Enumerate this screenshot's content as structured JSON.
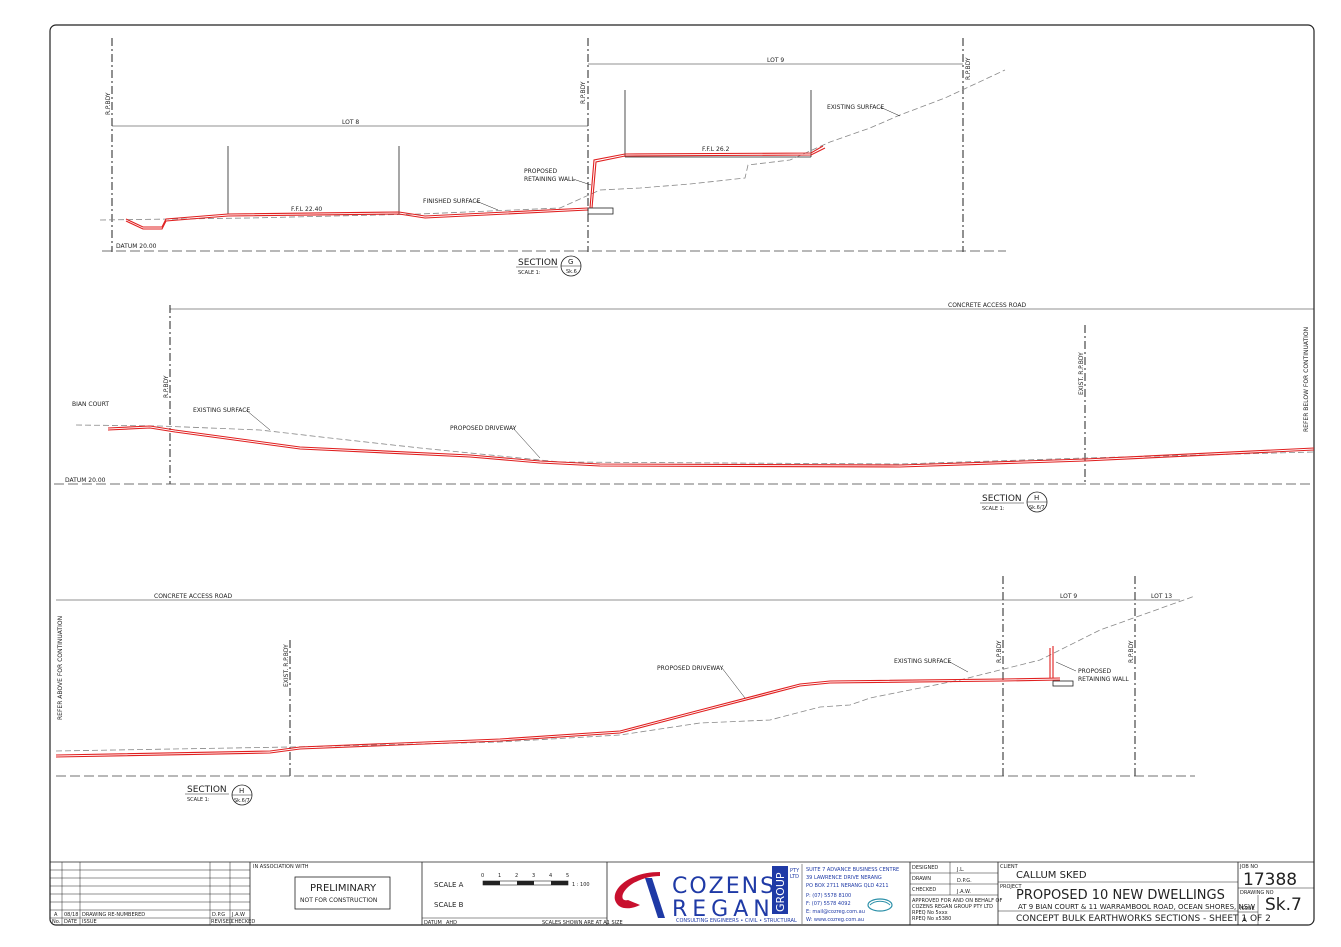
{
  "section_g": {
    "rp_bdy": "R.P.BDY",
    "lot8": "LOT 8",
    "lot9": "LOT 9",
    "ffl_lot8": "F.F.L 22.40",
    "ffl_lot9": "F.F.L 26.2",
    "existing_surface": "EXISTING SURFACE",
    "proposed_retaining_wall_1": "PROPOSED",
    "proposed_retaining_wall_2": "RETAINING WALL",
    "finished_surface": "FINISHED SURFACE",
    "datum": "DATUM 20.00",
    "title": "SECTION",
    "scale": "SCALE 1:",
    "bubble_letter": "G",
    "bubble_ref": "Sk.6"
  },
  "section_h1": {
    "concrete_access_road": "CONCRETE ACCESS ROAD",
    "bian_court": "BIAN COURT",
    "rp_bdy": "R.P.BDY",
    "existing_surface": "EXISTING SURFACE",
    "proposed_driveway": "PROPOSED DRIVEWAY",
    "exist_rp_bdy": "EXIST. R.P.BDY",
    "refer_below": "REFER BELOW FOR CONTINUATION",
    "datum": "DATUM 20.00",
    "title": "SECTION",
    "scale": "SCALE 1:",
    "bubble_letter": "H",
    "bubble_ref": "Sk.6/7"
  },
  "section_h2": {
    "concrete_access_road": "CONCRETE ACCESS ROAD",
    "lot9": "LOT 9",
    "lot13": "LOT 13",
    "refer_above": "REFER ABOVE FOR CONTINUATION",
    "exist_rp_bdy": "EXIST. R.P.BDY",
    "proposed_driveway": "PROPOSED DRIVEWAY",
    "existing_surface": "EXISTING SURFACE",
    "rp_bdy_a": "R.P.BDY",
    "rp_bdy_b": "R.P.BDY",
    "proposed_retaining_wall_1": "PROPOSED",
    "proposed_retaining_wall_2": "RETAINING WALL",
    "title": "SECTION",
    "scale": "SCALE 1:",
    "bubble_letter": "H",
    "bubble_ref": "Sk.6/7"
  },
  "title_block": {
    "rev_a": "A",
    "rev_date": "08/18",
    "rev_desc": "DRAWING RE-NUMBERED",
    "rev_by": "D.P.G",
    "rev_chk": "J.A.W",
    "hdr_no": "No.",
    "hdr_date": "DATE",
    "hdr_issue": "ISSUE",
    "hdr_revised": "REVISED",
    "hdr_checked": "CHECKED",
    "in_association": "IN ASSOCIATION WITH",
    "preliminary": "PRELIMINARY",
    "not_for_construction": "NOT FOR CONSTRUCTION",
    "scale_a": "SCALE  A",
    "scale_b": "SCALE  B",
    "scale_ratio": "1 : 100",
    "scale_ticks": [
      "0",
      "1",
      "2",
      "3",
      "4",
      "5"
    ],
    "datum_label": "DATUM",
    "datum_value": "AHD",
    "scales_note": "SCALES SHOWN ARE AT A1 SIZE",
    "logo_cozens": "COZENS",
    "logo_regan": "REGAN",
    "logo_group": "GROUP",
    "logo_pty": "PTY",
    "logo_ltd": "LTD",
    "logo_tagline": "CONSULTING ENGINEERS • CIVIL • STRUCTURAL",
    "addr": [
      "SUITE 7 ADVANCE BUSINESS CENTRE",
      "39 LAWRENCE DRIVE  NERANG",
      "PO BOX 2711  NERANG  QLD 4211"
    ],
    "contact": [
      "P:  (07) 5578 8100",
      "F:  (07) 5578 4092",
      "E:  mail@cozreg.com.au",
      "W:  www.cozreg.com.au"
    ],
    "designed_label": "DESIGNED",
    "designed": "J.L.",
    "drawn_label": "DRAWN",
    "drawn": "D.P.G.",
    "checked_label": "CHECKED",
    "checked": "J.A.W.",
    "approved": [
      "APPROVED FOR AND ON BEHALF OF",
      "COZENS REGAN GROUP PTY LTD",
      "RPEQ No 5xxx",
      "RPEQ No x5380"
    ],
    "client_label": "CLIENT",
    "client": "CALLUM SKED",
    "project_label": "PROJECT",
    "project": "PROPOSED 10 NEW DWELLINGS",
    "address": "AT 9 BIAN COURT & 11 WARRAMBOOL ROAD, OCEAN SHORES, NSW",
    "sheet_title": "CONCEPT BULK EARTHWORKS SECTIONS - SHEET 1 OF 2",
    "job_no_label": "JOB NO",
    "job_no": "17388",
    "drawing_no_label": "DRAWING NO",
    "drawing_no": "Sk.7",
    "issue_label": "ISSUE",
    "issue": "A"
  }
}
